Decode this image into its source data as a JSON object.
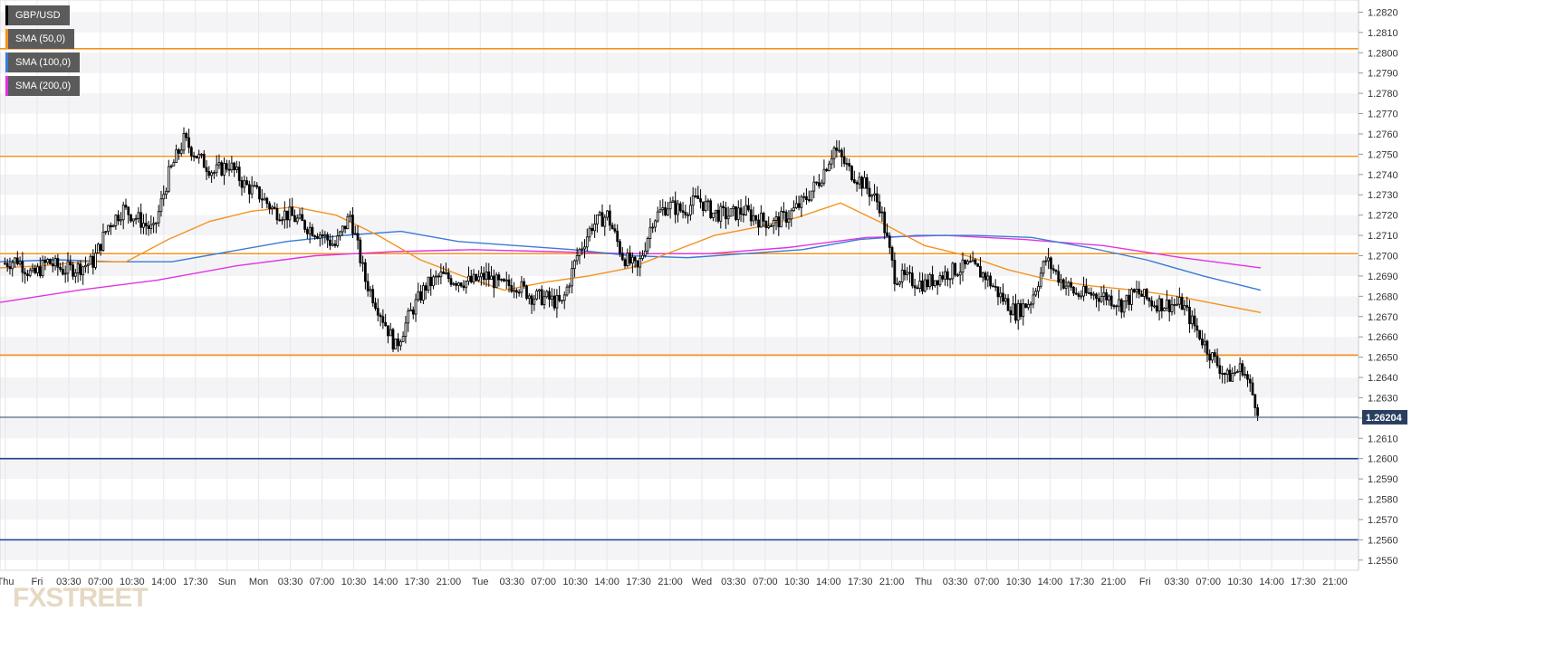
{
  "chart_data": {
    "type": "candlestick",
    "symbol": "GBP/USD",
    "legend": [
      {
        "label": "GBP/USD",
        "color": "#000000"
      },
      {
        "label": "SMA (50,0)",
        "color": "#f5921e"
      },
      {
        "label": "SMA (100,0)",
        "color": "#3a7bd5"
      },
      {
        "label": "SMA (200,0)",
        "color": "#e233e2"
      }
    ],
    "legend_placement": "top-left",
    "ylim": [
      1.2545,
      1.2826
    ],
    "y_ticks": [
      "1.2820",
      "1.2810",
      "1.2800",
      "1.2790",
      "1.2780",
      "1.2770",
      "1.2760",
      "1.2750",
      "1.2740",
      "1.2730",
      "1.2720",
      "1.2710",
      "1.2700",
      "1.2690",
      "1.2680",
      "1.2670",
      "1.2660",
      "1.2650",
      "1.2640",
      "1.2630",
      "1.2620",
      "1.2610",
      "1.2600",
      "1.2590",
      "1.2580",
      "1.2570",
      "1.2560",
      "1.2550"
    ],
    "x_ticks": [
      "Thu",
      "Fri",
      "03:30",
      "07:00",
      "10:30",
      "14:00",
      "17:30",
      "Sun",
      "Mon",
      "03:30",
      "07:00",
      "10:30",
      "14:00",
      "17:30",
      "21:00",
      "Tue",
      "03:30",
      "07:00",
      "10:30",
      "14:00",
      "17:30",
      "21:00",
      "Wed",
      "03:30",
      "07:00",
      "10:30",
      "14:00",
      "17:30",
      "21:00",
      "Thu",
      "03:30",
      "07:00",
      "10:30",
      "14:00",
      "17:30",
      "21:00",
      "Fri",
      "03:30",
      "07:00",
      "10:30",
      "14:00",
      "17:30",
      "21:00"
    ],
    "current_price": "1.26204",
    "current_value": 1.26204,
    "horizontal_levels": [
      {
        "value": 1.2802,
        "color": "#f5921e"
      },
      {
        "value": 1.2749,
        "color": "#f5921e"
      },
      {
        "value": 1.2701,
        "color": "#f5921e"
      },
      {
        "value": 1.2651,
        "color": "#f5921e"
      },
      {
        "value": 1.26,
        "color": "#1f3f8f"
      },
      {
        "value": 1.256,
        "color": "#1f3f8f"
      }
    ],
    "price_path": [
      1.2696,
      1.2698,
      1.269,
      1.2697,
      1.2693,
      1.2694,
      1.2697,
      1.2715,
      1.2723,
      1.2718,
      1.2712,
      1.274,
      1.2757,
      1.2748,
      1.2741,
      1.2745,
      1.2735,
      1.273,
      1.2722,
      1.272,
      1.2715,
      1.2711,
      1.2705,
      1.272,
      1.2688,
      1.2672,
      1.2655,
      1.2672,
      1.2685,
      1.269,
      1.2688,
      1.2687,
      1.269,
      1.2685,
      1.2686,
      1.268,
      1.2679,
      1.2676,
      1.27,
      1.2715,
      1.272,
      1.27,
      1.2693,
      1.2718,
      1.2725,
      1.2722,
      1.2728,
      1.2721,
      1.272,
      1.2722,
      1.2718,
      1.2716,
      1.272,
      1.2727,
      1.2737,
      1.2753,
      1.2742,
      1.2735,
      1.2725,
      1.269,
      1.2688,
      1.2686,
      1.269,
      1.2693,
      1.2695,
      1.269,
      1.268,
      1.2672,
      1.2678,
      1.2698,
      1.2688,
      1.2681,
      1.2681,
      1.268,
      1.2676,
      1.2682,
      1.2677,
      1.2676,
      1.2676,
      1.2663,
      1.265,
      1.264,
      1.2645,
      1.2625
    ],
    "sma50": [
      1.2694,
      1.2695,
      1.2697,
      1.2697,
      1.2708,
      1.2717,
      1.2722,
      1.2724,
      1.272,
      1.271,
      1.2698,
      1.269,
      1.2683,
      1.2687,
      1.269,
      1.2694,
      1.2702,
      1.271,
      1.2714,
      1.2719,
      1.2726,
      1.2716,
      1.2705,
      1.27,
      1.2693,
      1.2688,
      1.2685,
      1.2683,
      1.268,
      1.2676,
      1.2672
    ],
    "sma100": [
      1.2697,
      1.2698,
      1.2697,
      1.2697,
      1.2702,
      1.2707,
      1.271,
      1.2712,
      1.2707,
      1.2705,
      1.2703,
      1.27,
      1.2699,
      1.2701,
      1.2703,
      1.2708,
      1.271,
      1.271,
      1.2709,
      1.2704,
      1.2698,
      1.269,
      1.2683
    ],
    "sma200": [
      1.2677,
      1.2683,
      1.2688,
      1.2695,
      1.27,
      1.2702,
      1.2703,
      1.2702,
      1.2701,
      1.2701,
      1.2704,
      1.2709,
      1.271,
      1.2708,
      1.2705,
      1.2699,
      1.2694
    ]
  },
  "watermark": "FXSTREET"
}
